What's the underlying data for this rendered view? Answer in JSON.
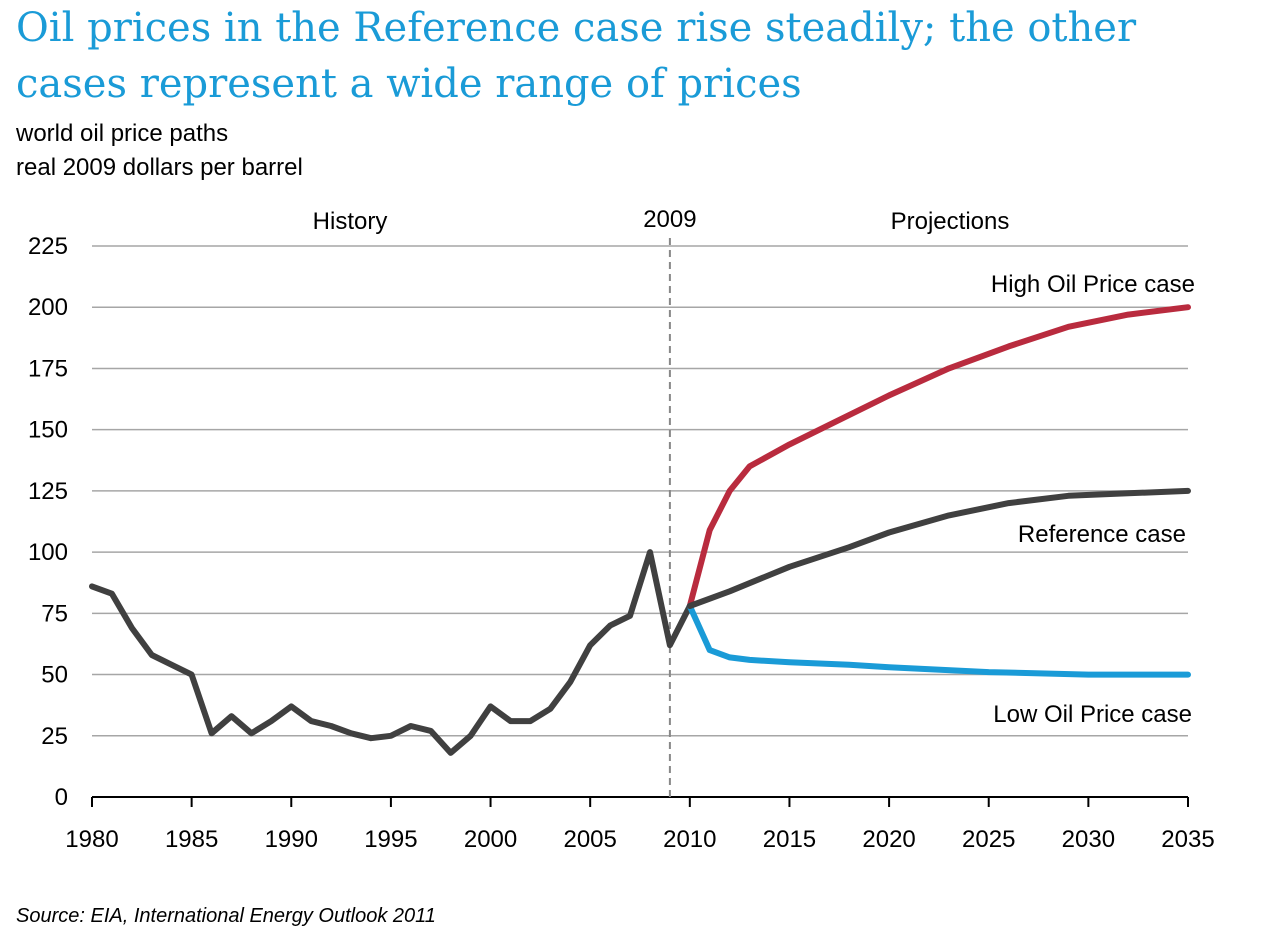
{
  "title": "Oil prices in the Reference case rise steadily; the other cases represent a wide range of prices",
  "subtitle_line1": "world oil price paths",
  "subtitle_line2": "real 2009 dollars per barrel",
  "source": "Source:  EIA, International Energy Outlook 2011",
  "chart_data": {
    "type": "line",
    "xlim": [
      1980,
      2035
    ],
    "ylim": [
      0,
      225
    ],
    "x_ticks": [
      1980,
      1985,
      1990,
      1995,
      2000,
      2005,
      2010,
      2015,
      2020,
      2025,
      2030,
      2035
    ],
    "y_ticks": [
      0,
      25,
      50,
      75,
      100,
      125,
      150,
      175,
      200,
      225
    ],
    "grid": true,
    "annotations": {
      "history": "History",
      "divider_year": 2009,
      "divider_label": "2009",
      "projections": "Projections"
    },
    "series": [
      {
        "key": "history",
        "color": "#404040",
        "x": [
          1980,
          1981,
          1982,
          1983,
          1984,
          1985,
          1986,
          1987,
          1988,
          1989,
          1990,
          1991,
          1992,
          1993,
          1994,
          1995,
          1996,
          1997,
          1998,
          1999,
          2000,
          2001,
          2002,
          2003,
          2004,
          2005,
          2006,
          2007,
          2008,
          2009,
          2010
        ],
        "values": [
          86,
          83,
          69,
          58,
          54,
          50,
          26,
          33,
          26,
          31,
          37,
          31,
          29,
          26,
          24,
          25,
          29,
          27,
          18,
          25,
          37,
          31,
          31,
          36,
          47,
          62,
          70,
          74,
          100,
          62,
          78
        ]
      },
      {
        "name": "High Oil Price case",
        "color": "#b92b3e",
        "x": [
          2010,
          2011,
          2012,
          2013,
          2015,
          2017,
          2020,
          2023,
          2026,
          2029,
          2032,
          2035
        ],
        "values": [
          78,
          109,
          125,
          135,
          144,
          152,
          164,
          175,
          184,
          192,
          197,
          200
        ]
      },
      {
        "name": "Reference case",
        "color": "#404040",
        "x": [
          2010,
          2012,
          2015,
          2018,
          2020,
          2023,
          2026,
          2029,
          2032,
          2035
        ],
        "values": [
          78,
          84,
          94,
          102,
          108,
          115,
          120,
          123,
          124,
          125
        ]
      },
      {
        "name": "Low Oil Price case",
        "color": "#1a9bd7",
        "x": [
          2010,
          2011,
          2012,
          2013,
          2015,
          2018,
          2020,
          2025,
          2030,
          2035
        ],
        "values": [
          78,
          60,
          57,
          56,
          55,
          54,
          53,
          51,
          50,
          50
        ]
      }
    ]
  }
}
